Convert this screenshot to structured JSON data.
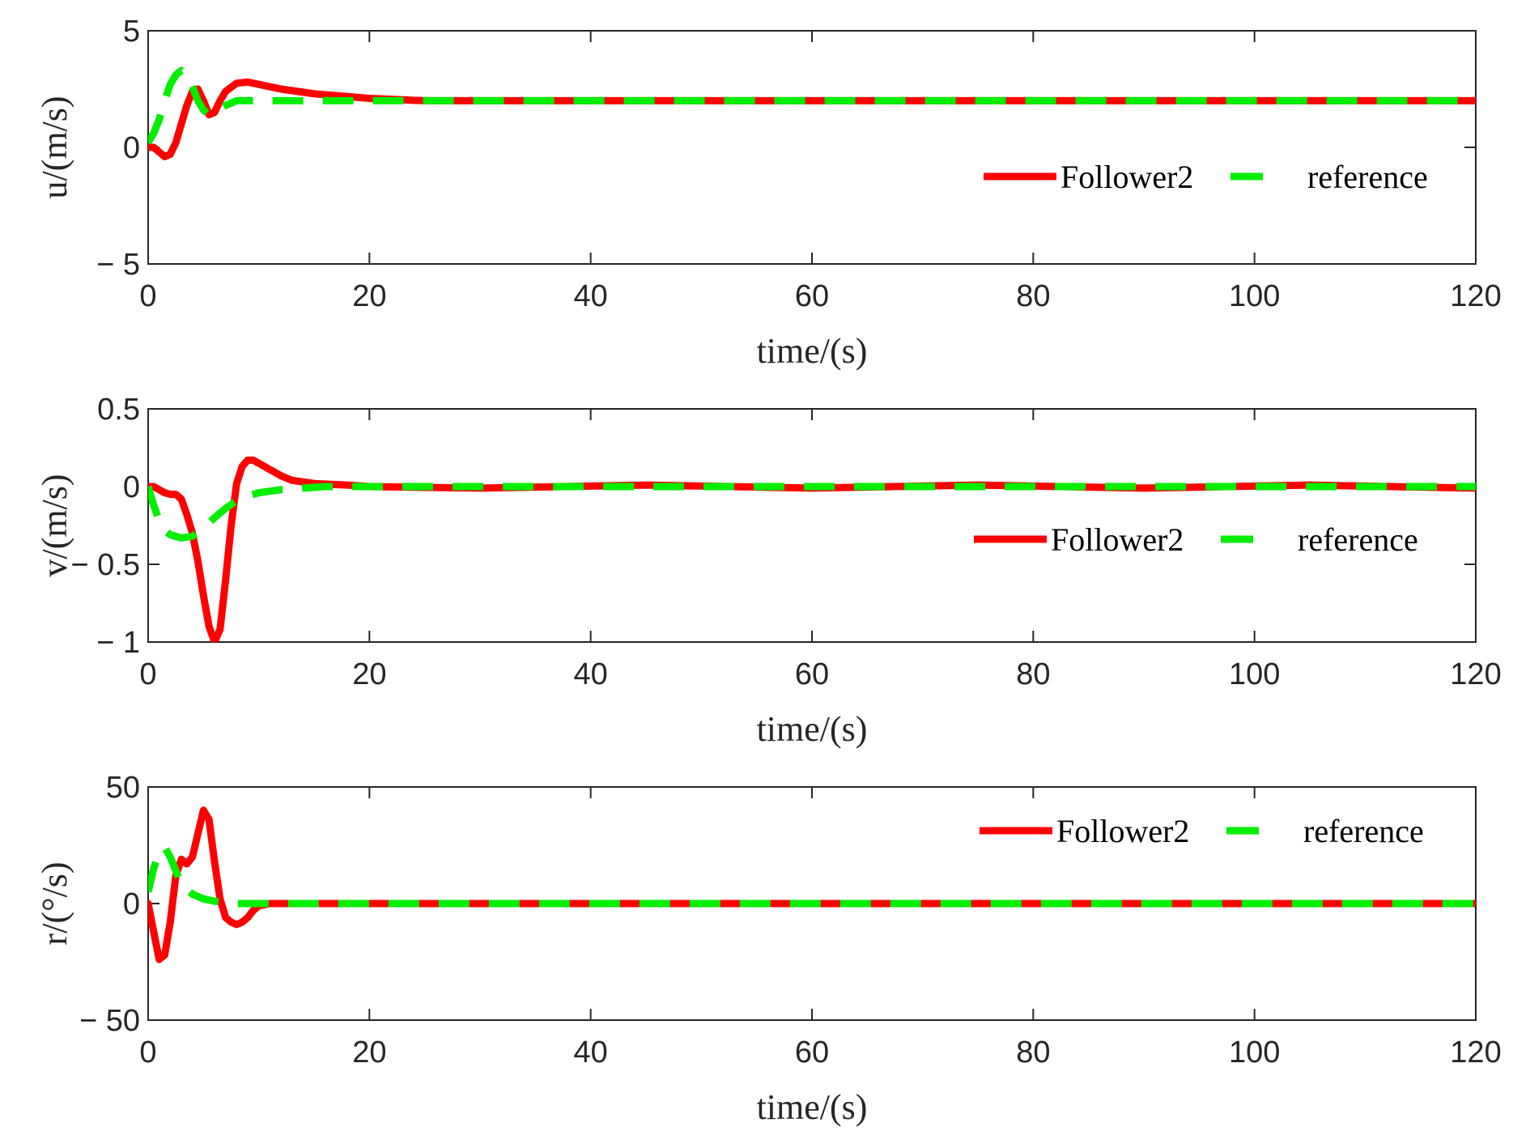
{
  "chart_data": [
    {
      "type": "line",
      "ylabel": "u/(m/s)",
      "xlabel": "time/(s)",
      "xlim": [
        0,
        120
      ],
      "ylim": [
        -5,
        5
      ],
      "xticks": [
        0,
        20,
        40,
        60,
        80,
        100,
        120
      ],
      "xtick_labels": [
        "0",
        "20",
        "40",
        "60",
        "80",
        "100",
        "120"
      ],
      "yticks": [
        -5,
        0,
        5
      ],
      "ytick_labels": [
        "− 5",
        "0",
        "5"
      ],
      "grid": false,
      "legend": {
        "placement": "right",
        "entries": [
          "Follower2",
          "reference"
        ]
      },
      "series": [
        {
          "name": "Follower2",
          "color": "#ff0000",
          "style": "solid",
          "x": [
            0,
            0.5,
            1,
            1.5,
            2,
            2.5,
            3,
            3.5,
            4,
            4.5,
            5,
            5.5,
            6,
            6.5,
            7,
            8,
            9,
            10,
            12,
            15,
            20,
            25,
            30,
            40,
            60,
            80,
            100,
            120
          ],
          "y": [
            0,
            0,
            -0.2,
            -0.4,
            -0.3,
            0.2,
            1.0,
            1.8,
            2.4,
            2.5,
            2.0,
            1.4,
            1.5,
            2.0,
            2.4,
            2.75,
            2.8,
            2.7,
            2.5,
            2.3,
            2.1,
            2.0,
            2.0,
            2.0,
            2.0,
            2.0,
            2.0,
            2.0
          ]
        },
        {
          "name": "reference",
          "color": "#00ee00",
          "style": "dashed",
          "x": [
            0,
            0.5,
            1,
            1.5,
            2,
            2.5,
            3,
            3.5,
            4,
            4.5,
            5,
            5.5,
            6,
            7,
            8,
            10,
            12,
            20,
            40,
            60,
            80,
            100,
            120
          ],
          "y": [
            0.2,
            0.6,
            1.2,
            2.0,
            2.7,
            3.1,
            3.3,
            3.1,
            2.6,
            2.0,
            1.6,
            1.4,
            1.5,
            1.8,
            2.0,
            2.0,
            2.0,
            2.0,
            2.0,
            2.0,
            2.0,
            2.0,
            2.0
          ]
        }
      ]
    },
    {
      "type": "line",
      "ylabel": "v/(m/s)",
      "xlabel": "time/(s)",
      "xlim": [
        0,
        120
      ],
      "ylim": [
        -1,
        0.5
      ],
      "xticks": [
        0,
        20,
        40,
        60,
        80,
        100,
        120
      ],
      "xtick_labels": [
        "0",
        "20",
        "40",
        "60",
        "80",
        "100",
        "120"
      ],
      "yticks": [
        -1,
        -0.5,
        0,
        0.5
      ],
      "ytick_labels": [
        "− 1",
        "− 0.5",
        "0",
        "0.5"
      ],
      "grid": false,
      "legend": {
        "placement": "right",
        "entries": [
          "Follower2",
          "reference"
        ]
      },
      "series": [
        {
          "name": "Follower2",
          "color": "#ff0000",
          "style": "solid",
          "x": [
            0,
            0.5,
            1,
            1.5,
            2,
            2.5,
            3,
            3.5,
            4,
            4.5,
            5,
            5.5,
            6,
            6.5,
            7,
            7.5,
            8,
            8.5,
            9,
            9.5,
            10,
            11,
            12,
            13,
            15,
            18,
            20,
            30,
            45,
            60,
            75,
            90,
            105,
            120
          ],
          "y": [
            0,
            0,
            -0.02,
            -0.04,
            -0.05,
            -0.05,
            -0.08,
            -0.18,
            -0.3,
            -0.48,
            -0.7,
            -0.9,
            -1.0,
            -0.92,
            -0.6,
            -0.25,
            0.02,
            0.13,
            0.17,
            0.17,
            0.15,
            0.11,
            0.07,
            0.04,
            0.02,
            0.01,
            0,
            -0.01,
            0.01,
            -0.01,
            0.01,
            -0.01,
            0.01,
            -0.01
          ]
        },
        {
          "name": "reference",
          "color": "#00ee00",
          "style": "dashed",
          "x": [
            0,
            0.5,
            1,
            1.5,
            2,
            3,
            4,
            5,
            6,
            7,
            8,
            9,
            10,
            12,
            14,
            16,
            20,
            40,
            60,
            80,
            100,
            120
          ],
          "y": [
            0,
            -0.12,
            -0.22,
            -0.28,
            -0.31,
            -0.33,
            -0.32,
            -0.27,
            -0.2,
            -0.14,
            -0.09,
            -0.06,
            -0.04,
            -0.02,
            -0.01,
            0,
            0,
            0,
            0,
            0,
            0,
            0
          ]
        }
      ]
    },
    {
      "type": "line",
      "ylabel": "r/(°/s)",
      "xlabel": "time/(s)",
      "xlim": [
        0,
        120
      ],
      "ylim": [
        -50,
        50
      ],
      "xticks": [
        0,
        20,
        40,
        60,
        80,
        100,
        120
      ],
      "xtick_labels": [
        "0",
        "20",
        "40",
        "60",
        "80",
        "100",
        "120"
      ],
      "yticks": [
        -50,
        0,
        50
      ],
      "ytick_labels": [
        "− 50",
        "0",
        "50"
      ],
      "grid": false,
      "legend": {
        "placement": "right",
        "entries": [
          "Follower2",
          "reference"
        ]
      },
      "series": [
        {
          "name": "Follower2",
          "color": "#ff0000",
          "style": "solid",
          "x": [
            0,
            0.5,
            1,
            1.5,
            2,
            2.5,
            3,
            3.5,
            4,
            4.5,
            5,
            5.5,
            6,
            6.5,
            7,
            7.5,
            8,
            8.5,
            9,
            9.5,
            10,
            11,
            12,
            20,
            40,
            60,
            80,
            100,
            120
          ],
          "y": [
            0,
            -12,
            -24,
            -22,
            -8,
            12,
            19,
            17,
            20,
            30,
            40,
            36,
            18,
            2,
            -6,
            -8,
            -9,
            -8,
            -6,
            -3,
            -1,
            0,
            0,
            0,
            0,
            0,
            0,
            0,
            0
          ]
        },
        {
          "name": "reference",
          "color": "#00ee00",
          "style": "dashed",
          "x": [
            0,
            0.5,
            1,
            1.5,
            2,
            2.5,
            3,
            4,
            5,
            6,
            7,
            8,
            10,
            20,
            40,
            60,
            80,
            100,
            120
          ],
          "y": [
            5,
            15,
            22,
            24,
            20,
            14,
            8,
            4,
            2,
            1,
            0.5,
            0,
            0,
            0,
            0,
            0,
            0,
            0,
            0
          ]
        }
      ]
    }
  ]
}
